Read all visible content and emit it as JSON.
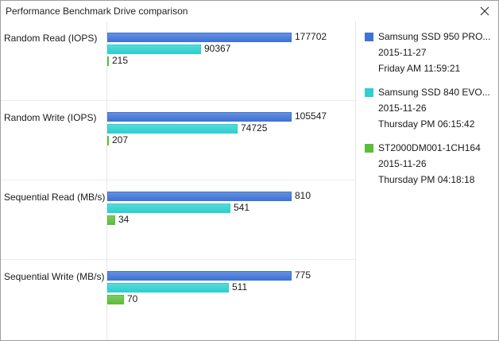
{
  "window": {
    "title": "Performance Benchmark Drive comparison",
    "close_icon": "close-icon"
  },
  "colors": {
    "drive1": "#3f73d6",
    "drive2": "#2ed0d0",
    "drive3": "#5cbd3a"
  },
  "legend": [
    {
      "name": "Samsung SSD 950 PRO...",
      "date": "2015-11-27",
      "time": "Friday AM 11:59:21"
    },
    {
      "name": "Samsung SSD 840 EVO...",
      "date": "2015-11-26",
      "time": "Thursday PM 06:15:42"
    },
    {
      "name": "ST2000DM001-1CH164",
      "date": "2015-11-26",
      "time": "Thursday PM 04:18:18"
    }
  ],
  "chart_data": {
    "type": "bar",
    "orientation": "horizontal",
    "categories": [
      "Random Read (IOPS)",
      "Random Write (IOPS)",
      "Sequential Read (MB/s)",
      "Sequential Write (MB/s)"
    ],
    "series": [
      {
        "name": "Samsung SSD 950 PRO...",
        "values": [
          177702,
          105547,
          810,
          775
        ]
      },
      {
        "name": "Samsung SSD 840 EVO...",
        "values": [
          90367,
          74725,
          541,
          511
        ]
      },
      {
        "name": "ST2000DM001-1CH164",
        "values": [
          215,
          207,
          34,
          70
        ]
      }
    ],
    "value_labels": [
      [
        "177702",
        "90367",
        "215"
      ],
      [
        "105547",
        "74725",
        "207"
      ],
      [
        "810",
        "541",
        "34"
      ],
      [
        "775",
        "511",
        "70"
      ]
    ],
    "scale": "each category normalized to its maximum value",
    "grid": false,
    "legend_position": "right"
  }
}
